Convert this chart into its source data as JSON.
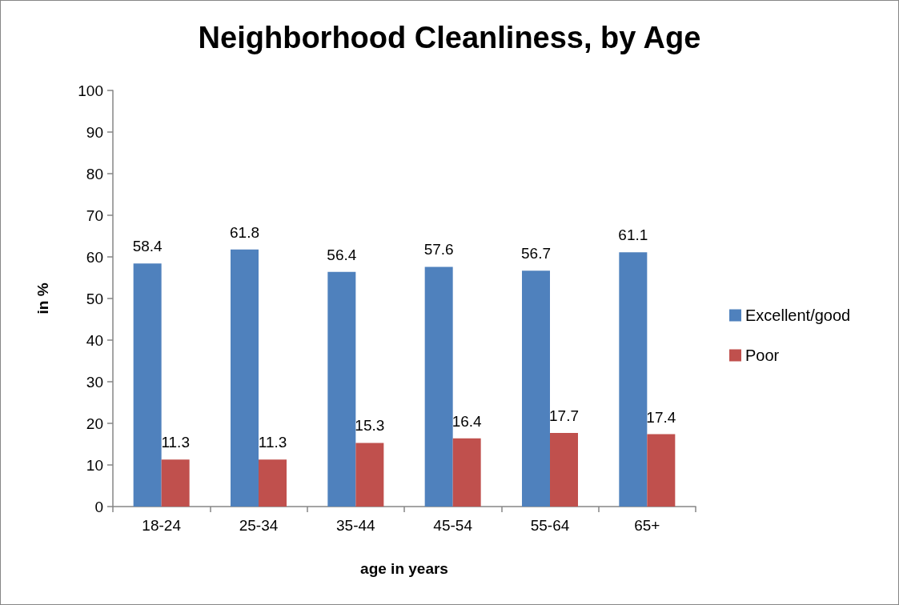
{
  "chart_data": {
    "type": "bar",
    "title": "Neighborhood Cleanliness, by Age",
    "xlabel": "age in years",
    "ylabel": "in %",
    "categories": [
      "18-24",
      "25-34",
      "35-44",
      "45-54",
      "55-64",
      "65+"
    ],
    "series": [
      {
        "name": "Excellent/good",
        "color": "#4f81bd",
        "values": [
          58.4,
          61.8,
          56.4,
          57.6,
          56.7,
          61.1
        ]
      },
      {
        "name": "Poor",
        "color": "#c0504d",
        "values": [
          11.3,
          11.3,
          15.3,
          16.4,
          17.7,
          17.4
        ]
      }
    ],
    "ylim": [
      0,
      100
    ],
    "yticks": [
      0,
      10,
      20,
      30,
      40,
      50,
      60,
      70,
      80,
      90,
      100
    ],
    "grid": false,
    "legend": "right",
    "data_labels": true
  }
}
